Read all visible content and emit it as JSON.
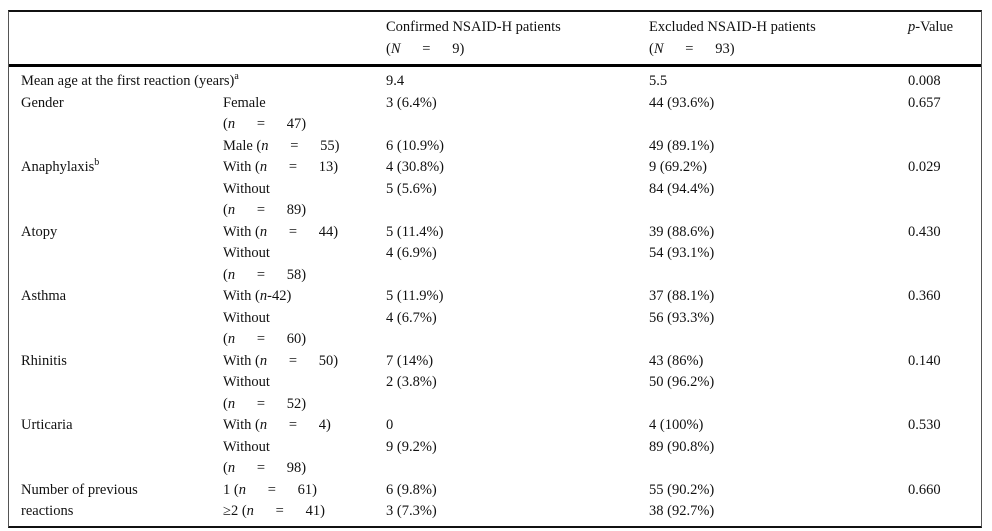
{
  "table": {
    "header": {
      "col1": "",
      "col2": "",
      "confirmed_line1": "Confirmed NSAID-H patients",
      "confirmed_line2": "(N   =   9)",
      "excluded_line1": "Excluded NSAID-H patients",
      "excluded_line2": "(N   =   93)",
      "pvalue": "p-Value"
    },
    "lines": [
      {
        "c1": "Mean age at the first reaction (years)",
        "c1_sup": "a",
        "span2": true,
        "c3": "9.4",
        "c4": "5.5",
        "c5": "0.008"
      },
      {
        "c1": "Gender",
        "c2": "Female",
        "c3": "3 (6.4%)",
        "c4": "44 (93.6%)",
        "c5": "0.657"
      },
      {
        "c2": "(n   =   47)"
      },
      {
        "c2": "Male (n   =   55)",
        "c3": "6 (10.9%)",
        "c4": "49 (89.1%)"
      },
      {
        "c1": "Anaphylaxis",
        "c1_sup": "b",
        "c2": "With (n   =   13)",
        "c3": "4 (30.8%)",
        "c4": "9 (69.2%)",
        "c5": "0.029"
      },
      {
        "c2": "Without",
        "c3": "5 (5.6%)",
        "c4": "84 (94.4%)"
      },
      {
        "c2": "(n   =   89)"
      },
      {
        "c1": "Atopy",
        "c2": "With (n   =   44)",
        "c3": "5 (11.4%)",
        "c4": "39 (88.6%)",
        "c5": "0.430"
      },
      {
        "c2": "Without",
        "c3": "4 (6.9%)",
        "c4": "54 (93.1%)"
      },
      {
        "c2": "(n   =   58)"
      },
      {
        "c1": "Asthma",
        "c2": "With (n-42)",
        "c3": "5 (11.9%)",
        "c4": "37 (88.1%)",
        "c5": "0.360"
      },
      {
        "c2": "Without",
        "c3": "4 (6.7%)",
        "c4": "56 (93.3%)"
      },
      {
        "c2": "(n   =   60)"
      },
      {
        "c1": "Rhinitis",
        "c2": "With (n   =   50)",
        "c3": "7 (14%)",
        "c4": "43 (86%)",
        "c5": "0.140"
      },
      {
        "c2": "Without",
        "c3": "2 (3.8%)",
        "c4": "50 (96.2%)"
      },
      {
        "c2": "(n   =   52)"
      },
      {
        "c1": "Urticaria",
        "c2": "With (n   =   4)",
        "c3": "0",
        "c4": "4 (100%)",
        "c5": "0.530"
      },
      {
        "c2": "Without",
        "c3": "9 (9.2%)",
        "c4": "89 (90.8%)"
      },
      {
        "c2": "(n   =   98)"
      },
      {
        "c1": "Number of previous",
        "c2": "1 (n   =   61)",
        "c3": "6 (9.8%)",
        "c4": "55 (90.2%)",
        "c5": "0.660"
      },
      {
        "c1": "reactions",
        "c2": "≥2 (n   =   41)",
        "c3": "3 (7.3%)",
        "c4": "38 (92.7%)"
      }
    ]
  }
}
